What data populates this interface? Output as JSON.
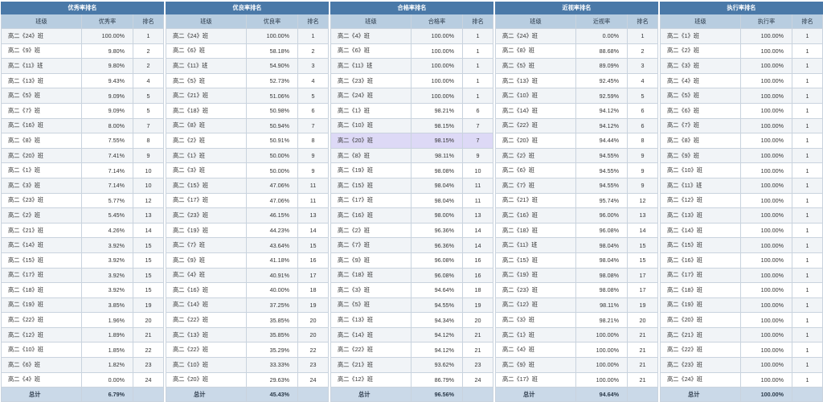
{
  "tables": [
    {
      "title": "优秀率排名",
      "headers": [
        "班级",
        "优秀率",
        "排名"
      ],
      "rows": [
        [
          "高二《24》班",
          "100.00%",
          "1"
        ],
        [
          "高二《9》班",
          "9.80%",
          "2"
        ],
        [
          "高二《11》班",
          "9.80%",
          "2"
        ],
        [
          "高二《13》班",
          "9.43%",
          "4"
        ],
        [
          "高二《5》班",
          "9.09%",
          "5"
        ],
        [
          "高二《7》班",
          "9.09%",
          "5"
        ],
        [
          "高二《16》班",
          "8.00%",
          "7"
        ],
        [
          "高二《8》班",
          "7.55%",
          "8"
        ],
        [
          "高二《20》班",
          "7.41%",
          "9"
        ],
        [
          "高二《1》班",
          "7.14%",
          "10"
        ],
        [
          "高二《3》班",
          "7.14%",
          "10"
        ],
        [
          "高二《23》班",
          "5.77%",
          "12"
        ],
        [
          "高二《2》班",
          "5.45%",
          "13"
        ],
        [
          "高二《21》班",
          "4.26%",
          "14"
        ],
        [
          "高二《14》班",
          "3.92%",
          "15"
        ],
        [
          "高二《15》班",
          "3.92%",
          "15"
        ],
        [
          "高二《17》班",
          "3.92%",
          "15"
        ],
        [
          "高二《18》班",
          "3.92%",
          "15"
        ],
        [
          "高二《19》班",
          "3.85%",
          "19"
        ],
        [
          "高二《22》班",
          "1.96%",
          "20"
        ],
        [
          "高二《12》班",
          "1.89%",
          "21"
        ],
        [
          "高二《10》班",
          "1.85%",
          "22"
        ],
        [
          "高二《6》班",
          "1.82%",
          "23"
        ],
        [
          "高二《4》班",
          "0.00%",
          "24"
        ]
      ],
      "total": [
        "总计",
        "6.79%",
        ""
      ]
    },
    {
      "title": "优良率排名",
      "headers": [
        "班级",
        "优良率",
        "排名"
      ],
      "rows": [
        [
          "高二《24》班",
          "100.00%",
          "1"
        ],
        [
          "高二《6》班",
          "58.18%",
          "2"
        ],
        [
          "高二《11》班",
          "54.90%",
          "3"
        ],
        [
          "高二《5》班",
          "52.73%",
          "4"
        ],
        [
          "高二《21》班",
          "51.06%",
          "5"
        ],
        [
          "高二《18》班",
          "50.98%",
          "6"
        ],
        [
          "高二《8》班",
          "50.94%",
          "7"
        ],
        [
          "高二《2》班",
          "50.91%",
          "8"
        ],
        [
          "高二《1》班",
          "50.00%",
          "9"
        ],
        [
          "高二《3》班",
          "50.00%",
          "9"
        ],
        [
          "高二《15》班",
          "47.06%",
          "11"
        ],
        [
          "高二《17》班",
          "47.06%",
          "11"
        ],
        [
          "高二《23》班",
          "46.15%",
          "13"
        ],
        [
          "高二《19》班",
          "44.23%",
          "14"
        ],
        [
          "高二《7》班",
          "43.64%",
          "15"
        ],
        [
          "高二《9》班",
          "41.18%",
          "16"
        ],
        [
          "高二《4》班",
          "40.91%",
          "17"
        ],
        [
          "高二《16》班",
          "40.00%",
          "18"
        ],
        [
          "高二《14》班",
          "37.25%",
          "19"
        ],
        [
          "高二《22》班",
          "35.85%",
          "20"
        ],
        [
          "高二《13》班",
          "35.85%",
          "20"
        ],
        [
          "高二《22》班",
          "35.29%",
          "22"
        ],
        [
          "高二《10》班",
          "33.33%",
          "23"
        ],
        [
          "高二《20》班",
          "29.63%",
          "24"
        ]
      ],
      "total": [
        "总计",
        "45.43%",
        ""
      ]
    },
    {
      "title": "合格率排名",
      "headers": [
        "班级",
        "合格率",
        "排名"
      ],
      "rows": [
        [
          "高二《4》班",
          "100.00%",
          "1"
        ],
        [
          "高二《6》班",
          "100.00%",
          "1"
        ],
        [
          "高二《11》班",
          "100.00%",
          "1"
        ],
        [
          "高二《23》班",
          "100.00%",
          "1"
        ],
        [
          "高二《24》班",
          "100.00%",
          "1"
        ],
        [
          "高二《1》班",
          "98.21%",
          "6"
        ],
        [
          "高二《10》班",
          "98.15%",
          "7"
        ],
        [
          "高二《20》班",
          "98.15%",
          "7"
        ],
        [
          "高二《8》班",
          "98.11%",
          "9"
        ],
        [
          "高二《19》班",
          "98.08%",
          "10"
        ],
        [
          "高二《15》班",
          "98.04%",
          "11"
        ],
        [
          "高二《17》班",
          "98.04%",
          "11"
        ],
        [
          "高二《16》班",
          "98.00%",
          "13"
        ],
        [
          "高二《2》班",
          "96.36%",
          "14"
        ],
        [
          "高二《7》班",
          "96.36%",
          "14"
        ],
        [
          "高二《9》班",
          "96.08%",
          "16"
        ],
        [
          "高二《18》班",
          "96.08%",
          "16"
        ],
        [
          "高二《3》班",
          "94.64%",
          "18"
        ],
        [
          "高二《5》班",
          "94.55%",
          "19"
        ],
        [
          "高二《13》班",
          "94.34%",
          "20"
        ],
        [
          "高二《14》班",
          "94.12%",
          "21"
        ],
        [
          "高二《22》班",
          "94.12%",
          "21"
        ],
        [
          "高二《21》班",
          "93.62%",
          "23"
        ],
        [
          "高二《12》班",
          "86.79%",
          "24"
        ]
      ],
      "total": [
        "总计",
        "96.56%",
        ""
      ]
    },
    {
      "title": "近视率排名",
      "headers": [
        "班级",
        "近视率",
        "排名"
      ],
      "rows": [
        [
          "高二《24》班",
          "0.00%",
          "1"
        ],
        [
          "高二《8》班",
          "88.68%",
          "2"
        ],
        [
          "高二《5》班",
          "89.09%",
          "3"
        ],
        [
          "高二《13》班",
          "92.45%",
          "4"
        ],
        [
          "高二《10》班",
          "92.59%",
          "5"
        ],
        [
          "高二《14》班",
          "94.12%",
          "6"
        ],
        [
          "高二《22》班",
          "94.12%",
          "6"
        ],
        [
          "高二《20》班",
          "94.44%",
          "8"
        ],
        [
          "高二《2》班",
          "94.55%",
          "9"
        ],
        [
          "高二《6》班",
          "94.55%",
          "9"
        ],
        [
          "高二《7》班",
          "94.55%",
          "9"
        ],
        [
          "高二《21》班",
          "95.74%",
          "12"
        ],
        [
          "高二《16》班",
          "96.00%",
          "13"
        ],
        [
          "高二《18》班",
          "96.08%",
          "14"
        ],
        [
          "高二《11》班",
          "98.04%",
          "15"
        ],
        [
          "高二《15》班",
          "98.04%",
          "15"
        ],
        [
          "高二《19》班",
          "98.08%",
          "17"
        ],
        [
          "高二《23》班",
          "98.08%",
          "17"
        ],
        [
          "高二《12》班",
          "98.11%",
          "19"
        ],
        [
          "高二《3》班",
          "98.21%",
          "20"
        ],
        [
          "高二《1》班",
          "100.00%",
          "21"
        ],
        [
          "高二《4》班",
          "100.00%",
          "21"
        ],
        [
          "高二《9》班",
          "100.00%",
          "21"
        ],
        [
          "高二《17》班",
          "100.00%",
          "21"
        ]
      ],
      "total": [
        "总计",
        "94.64%",
        ""
      ]
    },
    {
      "title": "执行率排名",
      "headers": [
        "班级",
        "执行率",
        "排名"
      ],
      "rows": [
        [
          "高二《1》班",
          "100.00%",
          "1"
        ],
        [
          "高二《2》班",
          "100.00%",
          "1"
        ],
        [
          "高二《3》班",
          "100.00%",
          "1"
        ],
        [
          "高二《4》班",
          "100.00%",
          "1"
        ],
        [
          "高二《5》班",
          "100.00%",
          "1"
        ],
        [
          "高二《6》班",
          "100.00%",
          "1"
        ],
        [
          "高二《7》班",
          "100.00%",
          "1"
        ],
        [
          "高二《8》班",
          "100.00%",
          "1"
        ],
        [
          "高二《9》班",
          "100.00%",
          "1"
        ],
        [
          "高二《10》班",
          "100.00%",
          "1"
        ],
        [
          "高二《11》班",
          "100.00%",
          "1"
        ],
        [
          "高二《12》班",
          "100.00%",
          "1"
        ],
        [
          "高二《13》班",
          "100.00%",
          "1"
        ],
        [
          "高二《14》班",
          "100.00%",
          "1"
        ],
        [
          "高二《15》班",
          "100.00%",
          "1"
        ],
        [
          "高二《16》班",
          "100.00%",
          "1"
        ],
        [
          "高二《17》班",
          "100.00%",
          "1"
        ],
        [
          "高二《18》班",
          "100.00%",
          "1"
        ],
        [
          "高二《19》班",
          "100.00%",
          "1"
        ],
        [
          "高二《20》班",
          "100.00%",
          "1"
        ],
        [
          "高二《21》班",
          "100.00%",
          "1"
        ],
        [
          "高二《22》班",
          "100.00%",
          "1"
        ],
        [
          "高二《23》班",
          "100.00%",
          "1"
        ],
        [
          "高二《24》班",
          "100.00%",
          "1"
        ]
      ],
      "total": [
        "总计",
        "100.00%",
        ""
      ]
    }
  ],
  "highlight": {
    "table": 2,
    "row": 7,
    "color": "#ddd9f6"
  }
}
